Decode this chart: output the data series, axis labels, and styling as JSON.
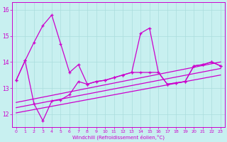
{
  "xlabel": "Windchill (Refroidissement éolien,°C)",
  "background_color": "#c8f0f0",
  "line_color": "#cc00cc",
  "grid_color": "#aadddd",
  "xlim_min": -0.5,
  "xlim_max": 23.5,
  "ylim_min": 11.5,
  "ylim_max": 16.3,
  "yticks": [
    12,
    13,
    14,
    15,
    16
  ],
  "xticks": [
    0,
    1,
    2,
    3,
    4,
    5,
    6,
    7,
    8,
    9,
    10,
    11,
    12,
    13,
    14,
    15,
    16,
    17,
    18,
    19,
    20,
    21,
    22,
    23
  ],
  "main_line_x": [
    0,
    1,
    2,
    3,
    4,
    5,
    6,
    7,
    8,
    9,
    10,
    11,
    12,
    13,
    14,
    15,
    16,
    17,
    18,
    19,
    20,
    21,
    22,
    23
  ],
  "main_line_y": [
    13.3,
    14.05,
    14.75,
    15.4,
    15.8,
    14.7,
    13.6,
    13.9,
    13.15,
    13.25,
    13.3,
    13.4,
    13.5,
    13.6,
    15.1,
    15.3,
    13.6,
    13.15,
    13.2,
    13.25,
    13.85,
    13.9,
    14.0,
    13.85
  ],
  "second_line_x": [
    0,
    1,
    2,
    3,
    4,
    5,
    6,
    7,
    8,
    9,
    10,
    11,
    12,
    13,
    14,
    15,
    16,
    17,
    18,
    19,
    20,
    21,
    22,
    23
  ],
  "second_line_y": [
    13.3,
    14.05,
    12.4,
    11.75,
    12.5,
    12.55,
    12.75,
    13.25,
    13.15,
    13.25,
    13.3,
    13.4,
    13.5,
    13.6,
    13.6,
    13.6,
    13.6,
    13.15,
    13.2,
    13.25,
    13.85,
    13.9,
    14.0,
    13.85
  ],
  "trend1_x": [
    0,
    23
  ],
  "trend1_y": [
    12.05,
    13.5
  ],
  "trend2_x": [
    0,
    23
  ],
  "trend2_y": [
    12.25,
    13.75
  ],
  "trend3_x": [
    0,
    23
  ],
  "trend3_y": [
    12.45,
    14.0
  ]
}
